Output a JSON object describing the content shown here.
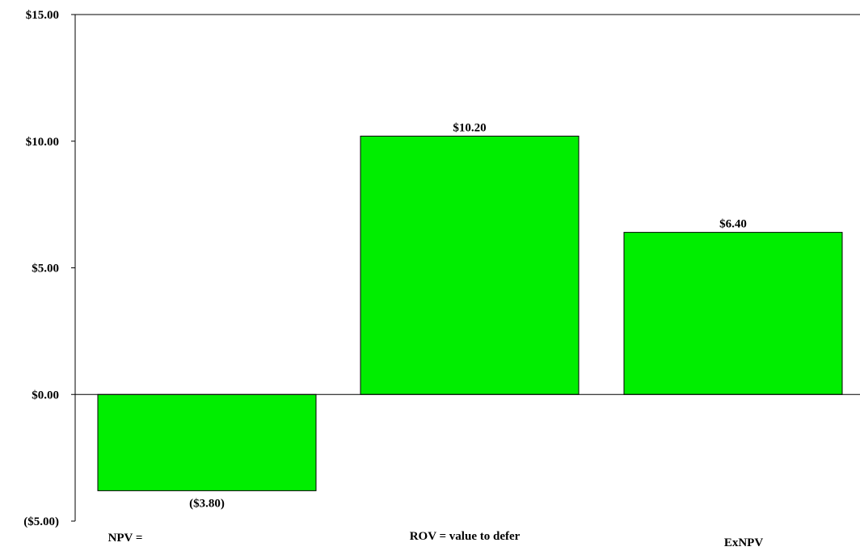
{
  "chart_data": {
    "type": "bar",
    "categories": [
      "NPV =",
      "ROV = value to defer",
      "ExNPV"
    ],
    "values": [
      -3.8,
      10.2,
      6.4
    ],
    "data_labels": [
      "($3.80)",
      "$10.20",
      "$6.40"
    ],
    "y_ticks": [
      -5,
      0,
      5,
      10,
      15
    ],
    "y_tick_labels": [
      "($5.00)",
      "$0.00",
      "$5.00",
      "$10.00",
      "$15.00"
    ],
    "ylim": [
      -5,
      15
    ],
    "bar_color": "#00ee00",
    "grid": false
  }
}
